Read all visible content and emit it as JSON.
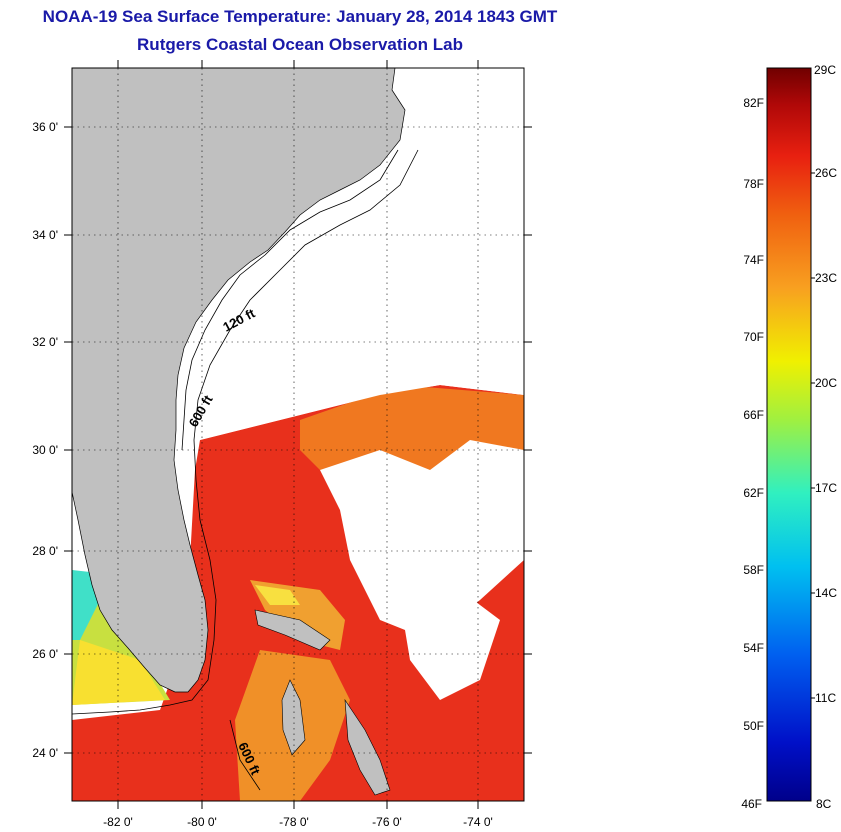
{
  "title": "NOAA-19 Sea Surface Temperature:  January 28, 2014 1843 GMT",
  "subtitle": "Rutgers Coastal Ocean Observation Lab",
  "map": {
    "lon_labels": [
      "-82 0'",
      "-80 0'",
      "-78 0'",
      "-76 0'",
      "-74 0'"
    ],
    "lat_labels": [
      "36 0'",
      "34 0'",
      "32 0'",
      "30 0'",
      "28 0'",
      "26 0'",
      "24 0'"
    ],
    "isobath_labels": [
      "120 ft",
      "600 ft",
      "600 ft"
    ],
    "colors": {
      "land": "#c0c0c0",
      "cloud": "#ffffff",
      "warm_water": "#e8281a",
      "mid_water": "#f0781e",
      "cool_water": "#f8e030",
      "cold_water": "#30e8e0"
    }
  },
  "colorbar": {
    "fahrenheit_labels": [
      "82F",
      "78F",
      "74F",
      "70F",
      "66F",
      "62F",
      "58F",
      "54F",
      "50F",
      "46F"
    ],
    "celsius_labels": [
      "29C",
      "26C",
      "23C",
      "20C",
      "17C",
      "14C",
      "11C",
      "8C"
    ],
    "range_c": [
      8,
      29
    ],
    "range_f": [
      46,
      84
    ]
  }
}
